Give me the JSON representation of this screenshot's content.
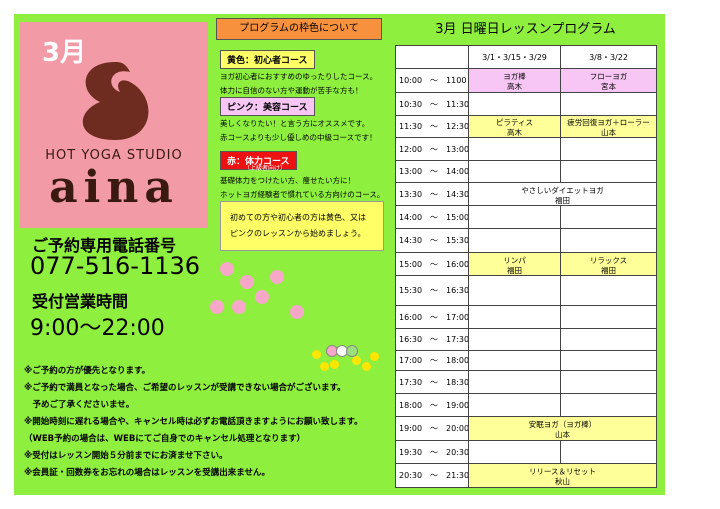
{
  "logo": {
    "month": "3月",
    "studio": "HOT YOGA STUDIO",
    "name": "aina"
  },
  "contact": {
    "phone_label": "ご予約専用電話番号",
    "phone": "077-516-1136",
    "hours_label": "受付営業時間",
    "hours": "9:00～22:00"
  },
  "notes": [
    "※ご予約の方が優先となります。",
    "※ご予約で満員となった場合、ご希望のレッスンが受講できない場合がございます。",
    "　予めご了承くださいませ。",
    "※開始時刻に遅れる場合や、キャンセル時は必ずお電話頂きますようにお願い致します。",
    "（WEB予約の場合は、WEBにてご自身でのキャンセル処理となります）",
    "※受付はレッスン開始５分前までにお済ませ下さい。",
    "※会員証・回数券をお忘れの場合はレッスンを受講出来ません。"
  ],
  "legend": {
    "title": "プログラムの枠色について",
    "courses": [
      {
        "label": "黄色：初心者コース",
        "color": "#ffff66",
        "lines": [
          "ヨガ初心者におすすめのゆったりしたコース。",
          "体力に自信のない方や運動が苦手な方も！"
        ]
      },
      {
        "label": "ピンク：美容コース",
        "color": "#f7c6f4",
        "lines": [
          "美しくなりたい！と言う方にオススメです。",
          "赤コースよりも少し優しめの中級コースです！"
        ]
      },
      {
        "label": "赤：体力コース",
        "sub": "（上級者向け）",
        "color": "#ee1111",
        "lines": [
          "基礎体力をつけたい方、痩せたい方に！",
          "ホットヨガ経験者で慣れている方向けのコース。"
        ]
      }
    ],
    "note": [
      "初めての方や初心者の方は黄色、又は",
      "ピンクのレッスンから始めましょう。"
    ]
  },
  "table": {
    "title": "3月 日曜日レッスンプログラム",
    "header": [
      "3/1・3/15・3/29",
      "3/8・3/22"
    ],
    "rows": [
      {
        "time": "10:00　～　1100",
        "first": {
          "name": "ヨガ棒",
          "teacher": "高木",
          "color": "#f7c6f4"
        },
        "second": {
          "name": "フローヨガ",
          "teacher": "宮本",
          "color": "#f7c6f4"
        }
      },
      {
        "time": "10:30　～　11:30"
      },
      {
        "time": "11:30　～　12:30",
        "first": {
          "name": "ピラティス",
          "teacher": "高木",
          "color": "#ffff99"
        },
        "second": {
          "name": "疲労回復ヨガ＋ローラー",
          "teacher": "山本",
          "color": "#ffff99"
        }
      },
      {
        "time": "12:00　～　13:00"
      },
      {
        "time": "13:00　～　14:00"
      },
      {
        "time": "13:30　～　14:30",
        "both": {
          "name": "やさしいダイエットヨガ",
          "teacher": "福田",
          "color": "#ffffff"
        }
      },
      {
        "time": "14:00　～　15:00"
      },
      {
        "time": "14:30　～　15:30"
      },
      {
        "time": "15:00　～　16:00",
        "first": {
          "name": "リンパ",
          "teacher": "福田",
          "color": "#ffff99"
        },
        "second": {
          "name": "リラックス",
          "teacher": "福田",
          "color": "#ffff99"
        }
      },
      {
        "time": "15:30　～　16:30"
      },
      {
        "time": "16:00　～　17:00"
      },
      {
        "time": "16:30　～　17:30"
      },
      {
        "time": "17:00　～　18:00"
      },
      {
        "time": "17:30　～　18:30"
      },
      {
        "time": "18:00　～　19:00"
      },
      {
        "time": "19:00　～　20:00",
        "both": {
          "name": "安眠ヨガ（ヨガ棒）",
          "teacher": "山本",
          "color": "#ffff99"
        }
      },
      {
        "time": "19:30　～　20:30"
      },
      {
        "time": "20:30　～　21:30",
        "both": {
          "name": "リリース＆リセット",
          "teacher": "秋山",
          "color": "#ffff99"
        }
      }
    ]
  }
}
